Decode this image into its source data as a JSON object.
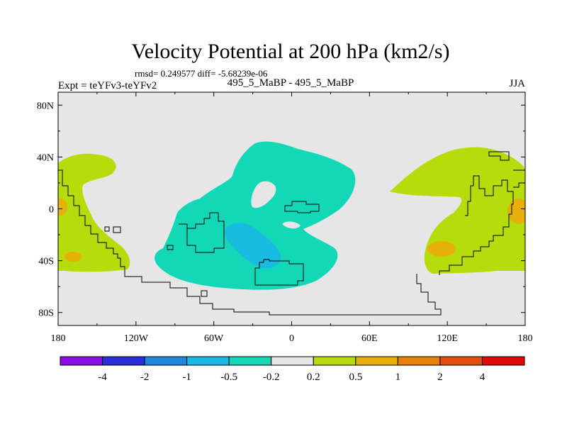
{
  "chart_data": {
    "type": "contour-map",
    "title": "Velocity Potential at 200 hPa (km2/s)",
    "rmsd_line": "rmsd= 0.249577  diff= -5.68239e-06",
    "left_label": "Expt = teYFv3-teYFv2",
    "center_label": "495_5_MaBP - 495_5_MaBP",
    "right_label": "JJA",
    "x_ticks": [
      "180",
      "120W",
      "60W",
      "0",
      "60E",
      "120E",
      "180"
    ],
    "x_tick_values": [
      -180,
      -120,
      -60,
      0,
      60,
      120,
      180
    ],
    "y_ticks": [
      "80N",
      "40N",
      "0",
      "40S",
      "80S"
    ],
    "y_tick_values": [
      80,
      40,
      0,
      -40,
      -80
    ],
    "xlim": [
      -180,
      180
    ],
    "ylim": [
      -90,
      90
    ],
    "colorbar": {
      "labels": [
        "-4",
        "-2",
        "-1",
        "-0.5",
        "-0.2",
        "0.2",
        "0.5",
        "1",
        "2",
        "4"
      ],
      "colors": [
        "#8a10e0",
        "#2a2ed8",
        "#1f86dc",
        "#18bce0",
        "#12d8b8",
        "#e6e6e6",
        "#b6dc0c",
        "#e6b00a",
        "#e6820c",
        "#e24c10",
        "#e00808"
      ]
    },
    "colors": {
      "neutral": "#e6e6e6",
      "neg_02": "#12d8b8",
      "neg_05": "#18bce0",
      "pos_02": "#b6dc0c",
      "pos_05": "#e6b00a"
    }
  }
}
